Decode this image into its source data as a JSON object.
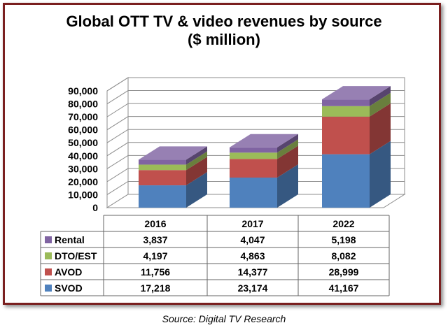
{
  "chart_data": {
    "type": "bar",
    "stacked": true,
    "three_d": true,
    "title": "Global OTT TV & video revenues by source",
    "subtitle": "($ million)",
    "categories": [
      "2016",
      "2017",
      "2022"
    ],
    "series": [
      {
        "name": "SVOD",
        "color": "#4f81bd",
        "values": [
          17218,
          23174,
          41167
        ],
        "labels": [
          "17,218",
          "23,174",
          "41,167"
        ]
      },
      {
        "name": "AVOD",
        "color": "#c0504d",
        "values": [
          11756,
          14377,
          28999
        ],
        "labels": [
          "11,756",
          "14,377",
          "28,999"
        ]
      },
      {
        "name": "DTO/EST",
        "color": "#9bbb59",
        "values": [
          4197,
          4863,
          8082
        ],
        "labels": [
          "4,197",
          "4,863",
          "8,082"
        ]
      },
      {
        "name": "Rental",
        "color": "#8064a2",
        "values": [
          3837,
          4047,
          5198
        ],
        "labels": [
          "3,837",
          "4,047",
          "5,198"
        ]
      }
    ],
    "ylim": [
      0,
      90000
    ],
    "yticks": [
      0,
      10000,
      20000,
      30000,
      40000,
      50000,
      60000,
      70000,
      80000,
      90000
    ],
    "ytick_labels": [
      "0",
      "10,000",
      "20,000",
      "30,000",
      "40,000",
      "50,000",
      "60,000",
      "70,000",
      "80,000",
      "90,000"
    ],
    "grid": true,
    "data_table": true,
    "legend": "data-table",
    "source": "Source: Digital TV Research"
  }
}
